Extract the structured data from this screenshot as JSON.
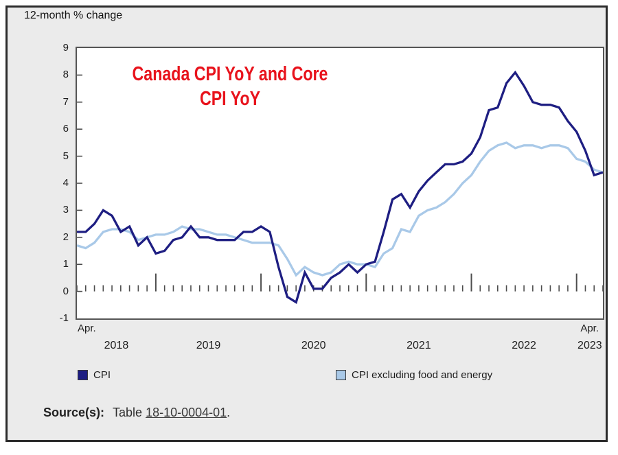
{
  "panel": {
    "heading": "12-month % change"
  },
  "annotation": {
    "line1": "Canada CPI YoY and Core",
    "line2": "CPI YoY",
    "color": "#e8131c"
  },
  "axes": {
    "y_ticks": [
      "9",
      "8",
      "7",
      "6",
      "5",
      "4",
      "3",
      "2",
      "1",
      "0",
      "-1"
    ],
    "apr_left": "Apr.",
    "apr_right": "Apr.",
    "years": [
      "2018",
      "2019",
      "2020",
      "2021",
      "2022",
      "2023"
    ]
  },
  "legend": [
    {
      "label": "CPI",
      "color": "#1e1e82"
    },
    {
      "label": "CPI excluding food and energy",
      "color": "#a9c9e8"
    }
  ],
  "source": {
    "label": "Source(s):",
    "prefix": "Table ",
    "link": "18-10-0004-01",
    "suffix": "."
  },
  "chart_data": {
    "type": "line",
    "title": "Canada CPI YoY and Core CPI YoY",
    "ylabel": "12-month % change",
    "ylim": [
      -1,
      9
    ],
    "x_start": "2018-04",
    "x_end": "2023-04",
    "x_frequency": "monthly",
    "x_visible_tick_labels": [
      "Apr. 2018",
      "2019",
      "2020",
      "2021",
      "2022",
      "Apr. 2023"
    ],
    "grid": false,
    "legend_position": "bottom",
    "series": [
      {
        "name": "CPI",
        "color": "#1e1e82",
        "values": [
          2.2,
          2.2,
          2.5,
          3.0,
          2.8,
          2.2,
          2.4,
          1.7,
          2.0,
          1.4,
          1.5,
          1.9,
          2.0,
          2.4,
          2.0,
          2.0,
          1.9,
          1.9,
          1.9,
          2.2,
          2.2,
          2.4,
          2.2,
          0.9,
          -0.2,
          -0.4,
          0.7,
          0.1,
          0.1,
          0.5,
          0.7,
          1.0,
          0.7,
          1.0,
          1.1,
          2.2,
          3.4,
          3.6,
          3.1,
          3.7,
          4.1,
          4.4,
          4.7,
          4.7,
          4.8,
          5.1,
          5.7,
          6.7,
          6.8,
          7.7,
          8.1,
          7.6,
          7.0,
          6.9,
          6.9,
          6.8,
          6.3,
          5.9,
          5.2,
          4.3,
          4.4
        ]
      },
      {
        "name": "CPI excluding food and energy",
        "color": "#a9c9e8",
        "values": [
          1.7,
          1.6,
          1.8,
          2.2,
          2.3,
          2.3,
          2.2,
          1.9,
          2.0,
          2.1,
          2.1,
          2.2,
          2.4,
          2.3,
          2.3,
          2.2,
          2.1,
          2.1,
          2.0,
          1.9,
          1.8,
          1.8,
          1.8,
          1.7,
          1.2,
          0.6,
          0.9,
          0.7,
          0.6,
          0.7,
          1.0,
          1.1,
          1.0,
          1.0,
          0.9,
          1.4,
          1.6,
          2.3,
          2.2,
          2.8,
          3.0,
          3.1,
          3.3,
          3.6,
          4.0,
          4.3,
          4.8,
          5.2,
          5.4,
          5.5,
          5.3,
          5.4,
          5.4,
          5.3,
          5.4,
          5.4,
          5.3,
          4.9,
          4.8,
          4.5,
          4.4
        ]
      }
    ]
  }
}
